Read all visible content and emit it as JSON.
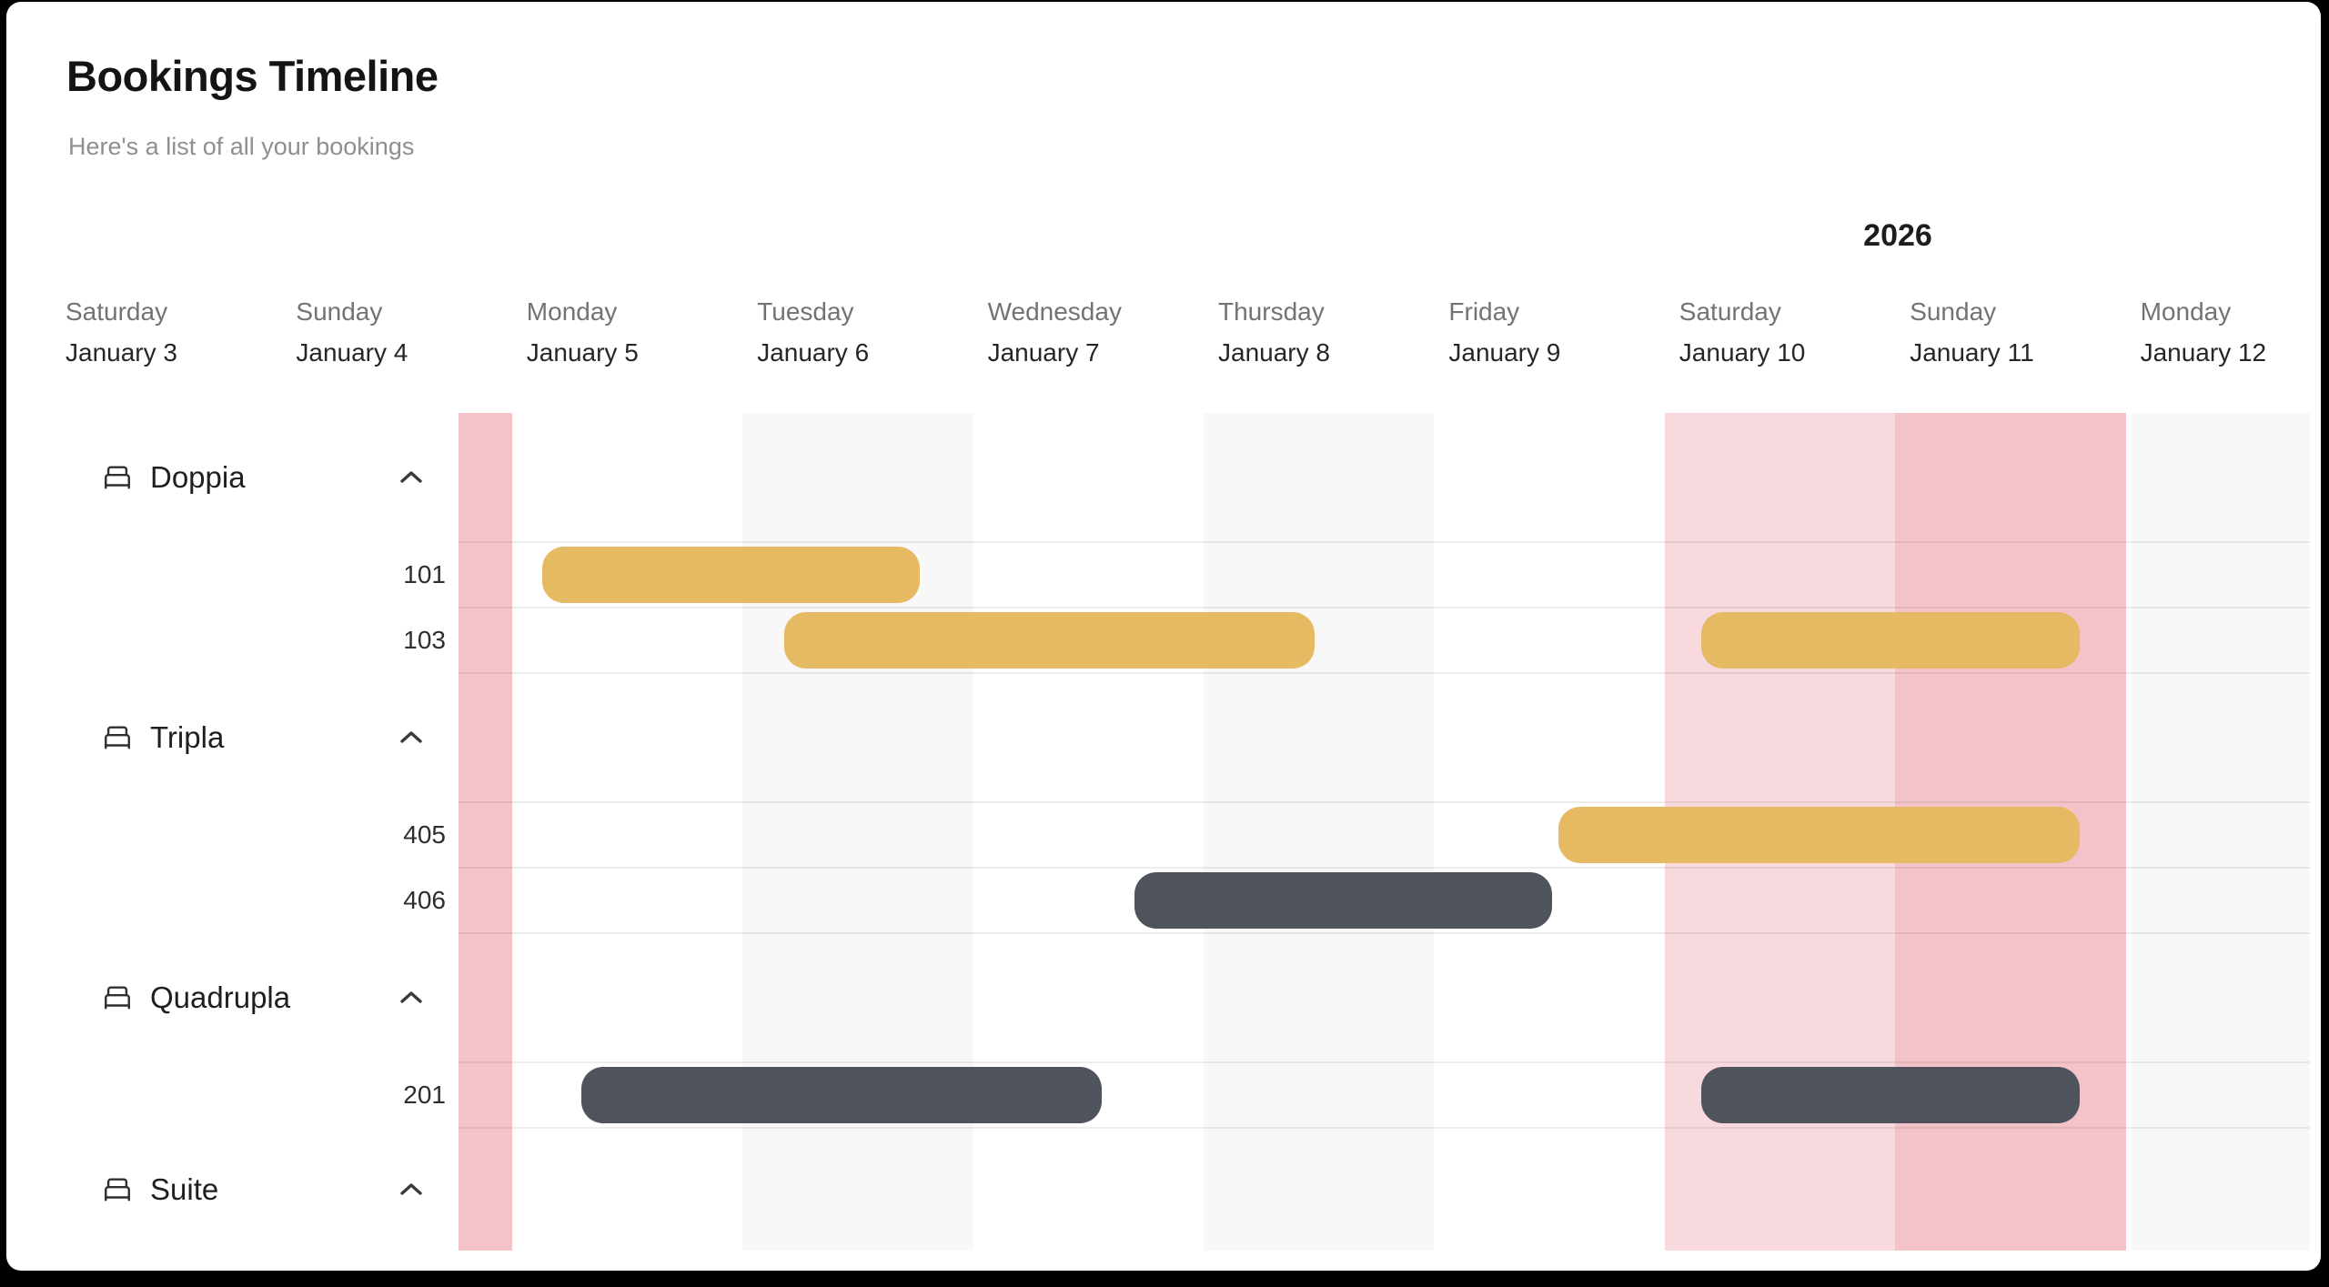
{
  "app": {
    "title": "Bookings Timeline",
    "subtitle": "Here's a list of all your bookings"
  },
  "colors": {
    "frame": "#000000",
    "panel": "#ffffff",
    "bar_yellow": "#e6ba63",
    "bar_slate": "#4e535c",
    "saturday_highlight": "#f8d9de",
    "sunday_highlight": "#f3c3c9",
    "alt_column": "#f8f8f8",
    "title_text": "#141414",
    "subtitle_text": "#8f8f8f",
    "weekday_text": "#737373",
    "date_text": "#262626"
  },
  "chart_data": {
    "type": "timeline",
    "title": "Bookings Timeline",
    "year_label": "2026",
    "days": [
      {
        "weekday": "Saturday",
        "date": "January 3",
        "shade": "none"
      },
      {
        "weekday": "Sunday",
        "date": "January 4",
        "shade": "sunday"
      },
      {
        "weekday": "Monday",
        "date": "January 5",
        "shade": "none"
      },
      {
        "weekday": "Tuesday",
        "date": "January 6",
        "shade": "alt"
      },
      {
        "weekday": "Wednesday",
        "date": "January 7",
        "shade": "none"
      },
      {
        "weekday": "Thursday",
        "date": "January 8",
        "shade": "alt"
      },
      {
        "weekday": "Friday",
        "date": "January 9",
        "shade": "none"
      },
      {
        "weekday": "Saturday",
        "date": "January 10",
        "shade": "saturday"
      },
      {
        "weekday": "Sunday",
        "date": "January 11",
        "shade": "sunday"
      },
      {
        "weekday": "Monday",
        "date": "January 12",
        "shade": "alt",
        "seam_left": true
      }
    ],
    "groups": [
      {
        "label": "Doppia",
        "rooms": [
          {
            "number": "101",
            "bookings": [
              {
                "color": "yellow",
                "start_day": 2.13,
                "end_day": 3.77,
                "start_date": "January 5",
                "end_date": "January 6"
              }
            ]
          },
          {
            "number": "103",
            "bookings": [
              {
                "color": "yellow",
                "start_day": 3.18,
                "end_day": 5.48,
                "start_date": "January 6",
                "end_date": "January 8"
              },
              {
                "color": "yellow",
                "start_day": 7.16,
                "end_day": 8.8,
                "start_date": "January 10",
                "end_date": "January 11"
              }
            ]
          }
        ]
      },
      {
        "label": "Tripla",
        "rooms": [
          {
            "number": "405",
            "bookings": [
              {
                "color": "yellow",
                "start_day": 6.54,
                "end_day": 8.8,
                "start_date": "January 9",
                "end_date": "January 11"
              }
            ]
          },
          {
            "number": "406",
            "bookings": [
              {
                "color": "slate",
                "start_day": 4.7,
                "end_day": 6.51,
                "start_date": "January 7",
                "end_date": "January 9"
              }
            ]
          }
        ]
      },
      {
        "label": "Quadrupla",
        "rooms": [
          {
            "number": "201",
            "bookings": [
              {
                "color": "slate",
                "start_day": 2.3,
                "end_day": 4.56,
                "start_date": "January 5",
                "end_date": "January 7"
              },
              {
                "color": "slate",
                "start_day": 7.16,
                "end_day": 8.8,
                "start_date": "January 10",
                "end_date": "January 11"
              }
            ]
          }
        ]
      },
      {
        "label": "Suite",
        "rooms": []
      }
    ]
  }
}
